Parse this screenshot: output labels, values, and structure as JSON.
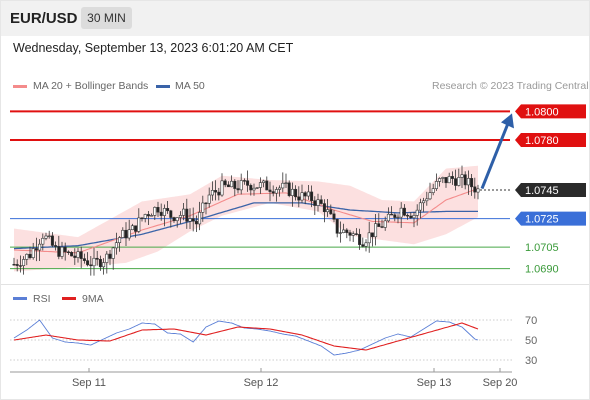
{
  "header": {
    "symbol": "EUR/USD",
    "timeframe": "30 MIN",
    "datetime": "Wednesday, September 13, 2023 6:01:20 AM CET"
  },
  "legend": {
    "ma20_label": "MA 20 + Bollinger Bands",
    "ma20_color": "#f48b8b",
    "ma50_label": "MA 50",
    "ma50_color": "#3a63a8",
    "credit": "Research © 2023 Trading Central"
  },
  "rsi_legend": {
    "rsi_label": "RSI",
    "rsi_color": "#5b7fd6",
    "ma_label": "9MA",
    "ma_color": "#e02020"
  },
  "colors": {
    "bull": "#ffffff",
    "bear": "#222222",
    "resistance": "#e01010",
    "pivot": "#3a6fd8",
    "support": "#48a848",
    "arrow": "#2e5fa8",
    "band": "#fcdada"
  },
  "chart_data": [
    {
      "type": "candlestick",
      "title": "EUR/USD 30 MIN",
      "ylim": [
        1.0682,
        1.0808
      ],
      "x_ticks": [
        "Sep 11",
        "Sep 12",
        "Sep 13",
        "Sep 20"
      ],
      "current_price": 1.0745,
      "price_labels": [
        "1.0800",
        "1.0780",
        "1.0745",
        "1.0725",
        "1.0705",
        "1.0690"
      ],
      "levels": [
        {
          "value": 1.08,
          "kind": "resistance"
        },
        {
          "value": 1.078,
          "kind": "resistance"
        },
        {
          "value": 1.0725,
          "kind": "pivot"
        },
        {
          "value": 1.0705,
          "kind": "support"
        },
        {
          "value": 1.069,
          "kind": "support"
        }
      ],
      "forecast_arrow": {
        "from": 1.0746,
        "to": 1.08
      },
      "anchors_close": [
        [
          0,
          1.0693
        ],
        [
          5,
          1.07
        ],
        [
          9,
          1.0714
        ],
        [
          13,
          1.0703
        ],
        [
          17,
          1.07
        ],
        [
          21,
          1.0697
        ],
        [
          25,
          1.0693
        ],
        [
          29,
          1.0698
        ],
        [
          33,
          1.0712
        ],
        [
          37,
          1.0717
        ],
        [
          41,
          1.0728
        ],
        [
          45,
          1.0733
        ],
        [
          49,
          1.0727
        ],
        [
          53,
          1.0728
        ],
        [
          57,
          1.0722
        ],
        [
          61,
          1.0741
        ],
        [
          65,
          1.0747
        ],
        [
          69,
          1.0747
        ],
        [
          73,
          1.0749
        ],
        [
          77,
          1.0748
        ],
        [
          81,
          1.0747
        ],
        [
          85,
          1.0746
        ],
        [
          89,
          1.0741
        ],
        [
          93,
          1.0739
        ],
        [
          97,
          1.0733
        ],
        [
          101,
          1.0717
        ],
        [
          105,
          1.0715
        ],
        [
          109,
          1.071
        ],
        [
          113,
          1.0717
        ],
        [
          117,
          1.0724
        ],
        [
          121,
          1.0732
        ],
        [
          125,
          1.0728
        ],
        [
          129,
          1.0741
        ],
        [
          133,
          1.0751
        ],
        [
          137,
          1.0753
        ],
        [
          141,
          1.0751
        ],
        [
          145,
          1.0745
        ]
      ],
      "ma50": [
        [
          0,
          1.0704
        ],
        [
          20,
          1.0706
        ],
        [
          40,
          1.0714
        ],
        [
          60,
          1.0726
        ],
        [
          75,
          1.0736
        ],
        [
          90,
          1.0736
        ],
        [
          105,
          1.0731
        ],
        [
          120,
          1.0729
        ],
        [
          135,
          1.073
        ],
        [
          145,
          1.073
        ]
      ],
      "ma20": [
        [
          0,
          1.0703
        ],
        [
          20,
          1.0701
        ],
        [
          40,
          1.0717
        ],
        [
          55,
          1.0727
        ],
        [
          70,
          1.0742
        ],
        [
          85,
          1.0743
        ],
        [
          100,
          1.0731
        ],
        [
          112,
          1.0723
        ],
        [
          125,
          1.0722
        ],
        [
          135,
          1.0738
        ],
        [
          145,
          1.0746
        ]
      ],
      "band_upper": [
        [
          0,
          1.0718
        ],
        [
          20,
          1.0712
        ],
        [
          40,
          1.0737
        ],
        [
          55,
          1.0742
        ],
        [
          65,
          1.0755
        ],
        [
          80,
          1.0752
        ],
        [
          95,
          1.0751
        ],
        [
          105,
          1.0748
        ],
        [
          115,
          1.0738
        ],
        [
          125,
          1.0737
        ],
        [
          135,
          1.076
        ],
        [
          145,
          1.0762
        ]
      ],
      "band_lower": [
        [
          0,
          1.0688
        ],
        [
          20,
          1.0691
        ],
        [
          35,
          1.0694
        ],
        [
          45,
          1.0702
        ],
        [
          55,
          1.0716
        ],
        [
          65,
          1.0727
        ],
        [
          80,
          1.0736
        ],
        [
          95,
          1.073
        ],
        [
          105,
          1.0713
        ],
        [
          115,
          1.071
        ],
        [
          125,
          1.0707
        ],
        [
          135,
          1.0714
        ],
        [
          145,
          1.0726
        ]
      ]
    },
    {
      "type": "line",
      "title": "RSI",
      "ylim": [
        22,
        78
      ],
      "y_ticks": [
        70,
        50,
        30
      ],
      "series": [
        {
          "name": "RSI",
          "values": [
            [
              0,
              52
            ],
            [
              4,
              60
            ],
            [
              8,
              70
            ],
            [
              12,
              52
            ],
            [
              16,
              48
            ],
            [
              20,
              47
            ],
            [
              24,
              45
            ],
            [
              28,
              51
            ],
            [
              32,
              57
            ],
            [
              36,
              61
            ],
            [
              40,
              67
            ],
            [
              44,
              66
            ],
            [
              48,
              57
            ],
            [
              52,
              56
            ],
            [
              56,
              48
            ],
            [
              60,
              63
            ],
            [
              64,
              69
            ],
            [
              68,
              67
            ],
            [
              72,
              62
            ],
            [
              76,
              61
            ],
            [
              80,
              59
            ],
            [
              84,
              56
            ],
            [
              88,
              54
            ],
            [
              92,
              49
            ],
            [
              96,
              44
            ],
            [
              100,
              35
            ],
            [
              104,
              37
            ],
            [
              108,
              40
            ],
            [
              112,
              46
            ],
            [
              116,
              52
            ],
            [
              120,
              56
            ],
            [
              124,
              53
            ],
            [
              128,
              61
            ],
            [
              132,
              69
            ],
            [
              136,
              68
            ],
            [
              140,
              63
            ],
            [
              144,
              51
            ],
            [
              145,
              50
            ]
          ]
        },
        {
          "name": "9MA",
          "values": [
            [
              0,
              50
            ],
            [
              10,
              55
            ],
            [
              20,
              50
            ],
            [
              30,
              49
            ],
            [
              40,
              60
            ],
            [
              50,
              61
            ],
            [
              60,
              55
            ],
            [
              70,
              63
            ],
            [
              80,
              61
            ],
            [
              90,
              55
            ],
            [
              100,
              44
            ],
            [
              110,
              40
            ],
            [
              120,
              49
            ],
            [
              130,
              58
            ],
            [
              140,
              67
            ],
            [
              145,
              61
            ]
          ]
        }
      ]
    }
  ]
}
